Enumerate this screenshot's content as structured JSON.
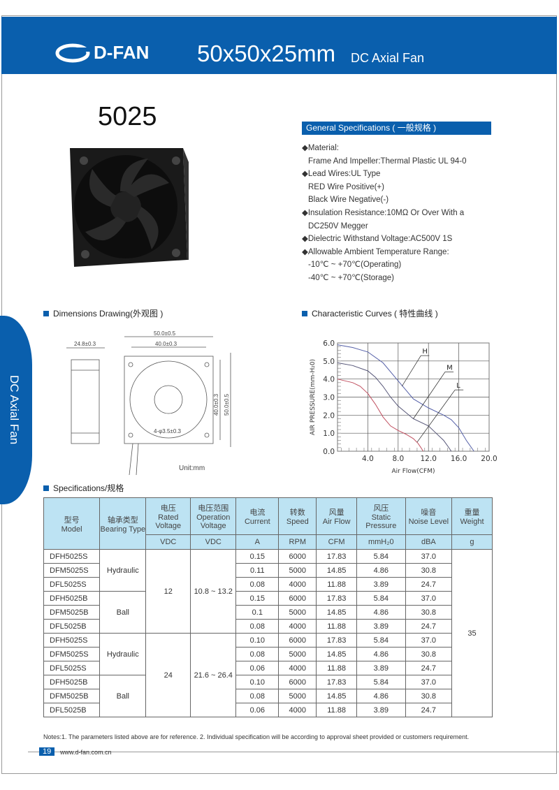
{
  "header": {
    "brand": "D-FAN",
    "title": "50x50x25mm",
    "subtitle": "DC Axial Fan"
  },
  "side_tab": "DC Axial Fan",
  "model": "5025",
  "general": {
    "heading": "General Specifications ( 一般规格 )",
    "lines": [
      {
        "text": "◆Material:",
        "indent": false
      },
      {
        "text": "Frame And Impeller:Thermal Plastic UL 94-0",
        "indent": true
      },
      {
        "text": "◆Lead Wires:UL Type",
        "indent": false
      },
      {
        "text": "RED Wire Positive(+)",
        "indent": true
      },
      {
        "text": "Black Wire Negative(-)",
        "indent": true
      },
      {
        "text": "◆Insulation Resistance:10MΩ  Or Over With a",
        "indent": false
      },
      {
        "text": "DC250V Megger",
        "indent": true
      },
      {
        "text": "◆Dielectric Withstand Voltage:AC500V 1S",
        "indent": false
      },
      {
        "text": "◆Allowable Ambient Temperature Range:",
        "indent": false
      },
      {
        "text": "-10℃ ~ +70℃(Operating)",
        "indent": true
      },
      {
        "text": "-40℃ ~ +70℃(Storage)",
        "indent": true
      }
    ]
  },
  "sections": {
    "dimensions": "Dimensions Drawing(外观图 )",
    "curves": "Characteristic Curves ( 特性曲线 )",
    "specs": "Specifications/规格"
  },
  "drawing": {
    "dims": [
      "24.8±0.3",
      "50.0±0.5",
      "40.0±0.3",
      "40.0±0.3",
      "50.0±0.5",
      "4-φ3.5±0.3"
    ],
    "unit": "Unit:mm"
  },
  "chart_data": {
    "type": "line",
    "xlabel": "Air Flow(CFM)",
    "ylabel": "AIR PRESSURE(mm-H₂0)",
    "xlim": [
      0,
      20
    ],
    "ylim": [
      0,
      6
    ],
    "xticks": [
      "4.0",
      "8.0",
      "12.0",
      "16.0",
      "20.0"
    ],
    "yticks": [
      "0.0",
      "1.0",
      "2.0",
      "3.0",
      "4.0",
      "5.0",
      "6.0"
    ],
    "grid": true,
    "series": [
      {
        "name": "H",
        "color": "#5560a8",
        "x": [
          0,
          2,
          4,
          6,
          8,
          9,
          10,
          12,
          14,
          15,
          16,
          17,
          18
        ],
        "y": [
          5.9,
          5.75,
          5.5,
          4.9,
          3.9,
          3.4,
          2.9,
          2.4,
          2.0,
          1.75,
          1.3,
          0.6,
          0
        ]
      },
      {
        "name": "M",
        "color": "#555577",
        "x": [
          0,
          2,
          4,
          5,
          6,
          7,
          8,
          10,
          12,
          13,
          14,
          14.6,
          15
        ],
        "y": [
          4.9,
          4.75,
          4.45,
          4.1,
          3.6,
          3.0,
          2.5,
          1.8,
          1.4,
          1.0,
          0.6,
          0.25,
          0
        ]
      },
      {
        "name": "L",
        "color": "#c05060",
        "x": [
          0,
          2,
          3,
          4,
          5,
          6,
          7,
          8,
          9,
          10,
          10.6,
          11,
          11.3
        ],
        "y": [
          4.0,
          3.8,
          3.6,
          3.2,
          2.6,
          1.9,
          1.4,
          1.15,
          0.95,
          0.7,
          0.45,
          0.2,
          0
        ]
      }
    ]
  },
  "table": {
    "headers": [
      [
        "型号",
        "Model"
      ],
      [
        "轴承类型",
        "Bearing Type"
      ],
      [
        "电压",
        "Rated Voltage"
      ],
      [
        "电压范围",
        "Operation Voltage"
      ],
      [
        "电流",
        "Current"
      ],
      [
        "转数",
        "Speed"
      ],
      [
        "风量",
        "Air Flow"
      ],
      [
        "风压",
        "Static Pressure"
      ],
      [
        "噪音",
        "Noise Level"
      ],
      [
        "重量",
        "Weight"
      ]
    ],
    "units": [
      "VDC",
      "VDC",
      "A",
      "RPM",
      "CFM",
      "mmH₂0",
      "dBA",
      "g"
    ],
    "models": [
      "DFH5025S",
      "DFM5025S",
      "DFL5025S",
      "DFH5025B",
      "DFM5025B",
      "DFL5025B",
      "DFH5025S",
      "DFM5025S",
      "DFL5025S",
      "DFH5025B",
      "DFM5025B",
      "DFL5025B"
    ],
    "bearing": [
      "Hydraulic",
      "Ball",
      "Hydraulic",
      "Ball"
    ],
    "rated": [
      "12",
      "24"
    ],
    "range": [
      "10.8 ~ 13.2",
      "21.6 ~ 26.4"
    ],
    "weight": "35",
    "rows": [
      [
        "0.15",
        "6000",
        "17.83",
        "5.84",
        "37.0"
      ],
      [
        "0.11",
        "5000",
        "14.85",
        "4.86",
        "30.8"
      ],
      [
        "0.08",
        "4000",
        "11.88",
        "3.89",
        "24.7"
      ],
      [
        "0.15",
        "6000",
        "17.83",
        "5.84",
        "37.0"
      ],
      [
        "0.1",
        "5000",
        "14.85",
        "4.86",
        "30.8"
      ],
      [
        "0.08",
        "4000",
        "11.88",
        "3.89",
        "24.7"
      ],
      [
        "0.10",
        "6000",
        "17.83",
        "5.84",
        "37.0"
      ],
      [
        "0.08",
        "5000",
        "14.85",
        "4.86",
        "30.8"
      ],
      [
        "0.06",
        "4000",
        "11.88",
        "3.89",
        "24.7"
      ],
      [
        "0.10",
        "6000",
        "17.83",
        "5.84",
        "37.0"
      ],
      [
        "0.08",
        "5000",
        "14.85",
        "4.86",
        "30.8"
      ],
      [
        "0.06",
        "4000",
        "11.88",
        "3.89",
        "24.7"
      ]
    ]
  },
  "notes": "Notes:1. The parameters listed above are for reference.   2. Individual specification will be according to approval sheet provided or customers requirement.",
  "footer": {
    "page": "19",
    "url": "www.d-fan.com.cn"
  },
  "colors": {
    "brand": "#0a5fad",
    "table_header": "#bde3f3"
  }
}
